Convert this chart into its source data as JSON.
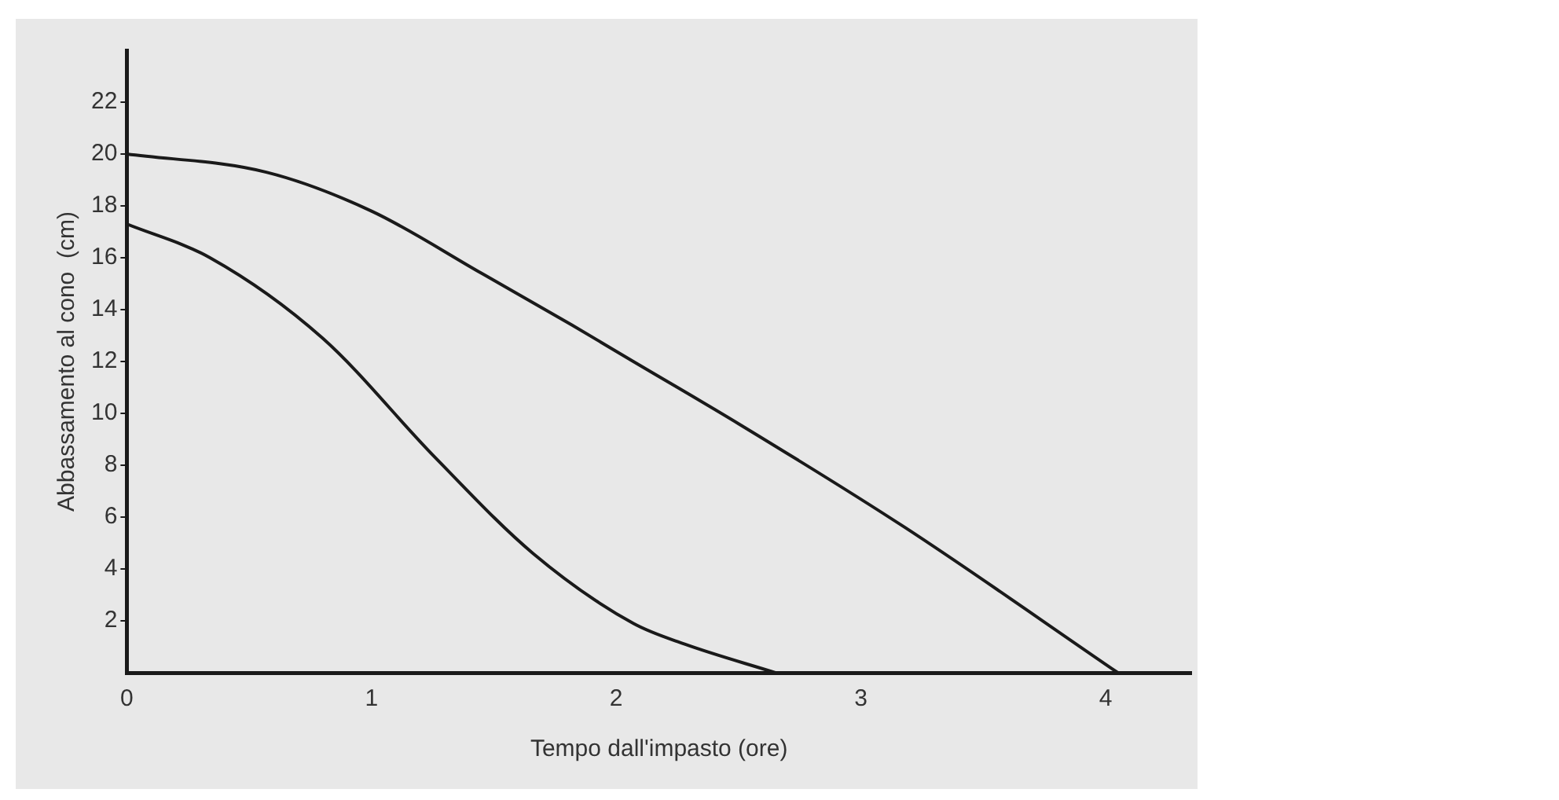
{
  "chart_data": {
    "type": "line",
    "xlabel": "Tempo dall'impasto (ore)",
    "ylabel": "Abbassamento al cono  (cm)",
    "xlim": [
      0,
      4.35
    ],
    "xticks": [
      0,
      1,
      2,
      3,
      4
    ],
    "ylim": [
      0,
      24
    ],
    "yticks": [
      2,
      4,
      6,
      8,
      10,
      12,
      14,
      16,
      18,
      20,
      22
    ],
    "grid": false,
    "legend": false,
    "marker": "none",
    "line_style": "solid",
    "series": [
      {
        "color": "#1a1a1a",
        "x": [
          0,
          0.57,
          1,
          1.45,
          1.82,
          2.07,
          2.5,
          3.18,
          4.05
        ],
        "values": [
          20,
          19.3,
          17.8,
          15.4,
          13.4,
          12,
          9.6,
          5.6,
          0
        ]
      },
      {
        "color": "#1a1a1a",
        "x": [
          0,
          0.34,
          0.8,
          1.26,
          1.66,
          2.07,
          2.28,
          2.65
        ],
        "values": [
          17.3,
          16,
          12.9,
          8.3,
          4.6,
          1.9,
          1.1,
          0
        ]
      }
    ]
  }
}
